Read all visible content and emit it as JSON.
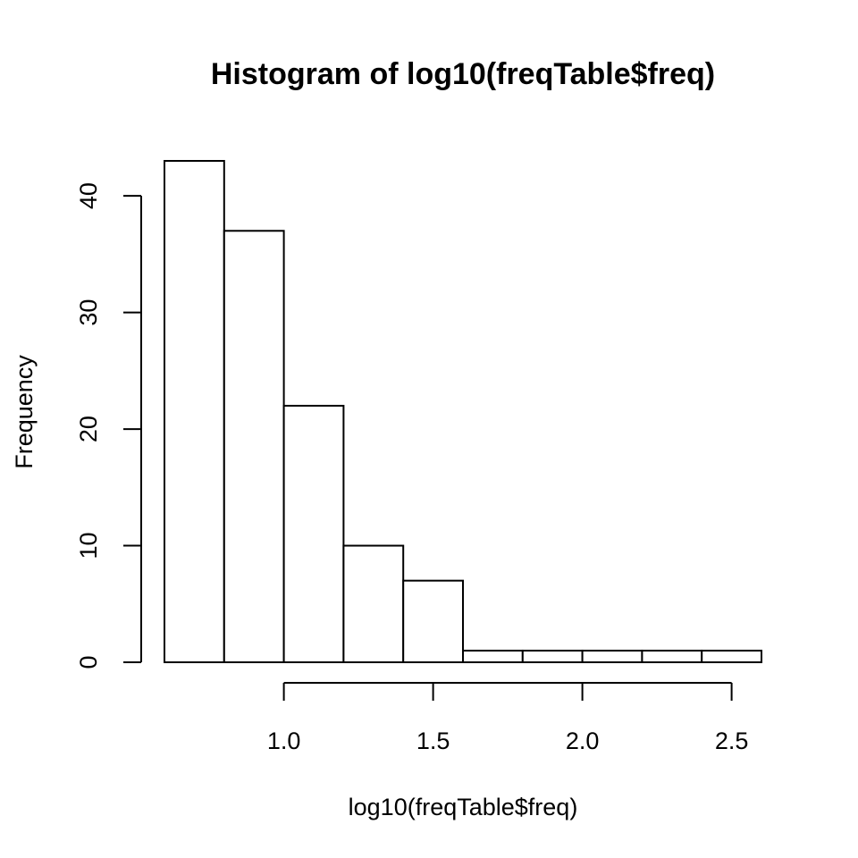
{
  "chart_data": {
    "type": "bar",
    "title": "Histogram of log10(freqTable$freq)",
    "xlabel": "log10(freqTable$freq)",
    "ylabel": "Frequency",
    "bins": [
      {
        "x0": 0.6,
        "x1": 0.8,
        "count": 43
      },
      {
        "x0": 0.8,
        "x1": 1.0,
        "count": 37
      },
      {
        "x0": 1.0,
        "x1": 1.2,
        "count": 22
      },
      {
        "x0": 1.2,
        "x1": 1.4,
        "count": 10
      },
      {
        "x0": 1.4,
        "x1": 1.6,
        "count": 7
      },
      {
        "x0": 1.6,
        "x1": 1.8,
        "count": 1
      },
      {
        "x0": 1.8,
        "x1": 2.0,
        "count": 1
      },
      {
        "x0": 2.0,
        "x1": 2.2,
        "count": 1
      },
      {
        "x0": 2.2,
        "x1": 2.4,
        "count": 1
      },
      {
        "x0": 2.4,
        "x1": 2.6,
        "count": 1
      }
    ],
    "xticks": [
      {
        "value": 1.0,
        "label": "1.0"
      },
      {
        "value": 1.5,
        "label": "1.5"
      },
      {
        "value": 2.0,
        "label": "2.0"
      },
      {
        "value": 2.5,
        "label": "2.5"
      }
    ],
    "yticks": [
      {
        "value": 0,
        "label": "0"
      },
      {
        "value": 10,
        "label": "10"
      },
      {
        "value": 20,
        "label": "20"
      },
      {
        "value": 30,
        "label": "30"
      },
      {
        "value": 40,
        "label": "40"
      }
    ],
    "xlim": [
      0.6,
      2.6
    ],
    "ylim": [
      0,
      43
    ],
    "grid": false,
    "legend": "none",
    "colors": {
      "bar_fill": "#ffffff",
      "bar_stroke": "#000000"
    }
  }
}
